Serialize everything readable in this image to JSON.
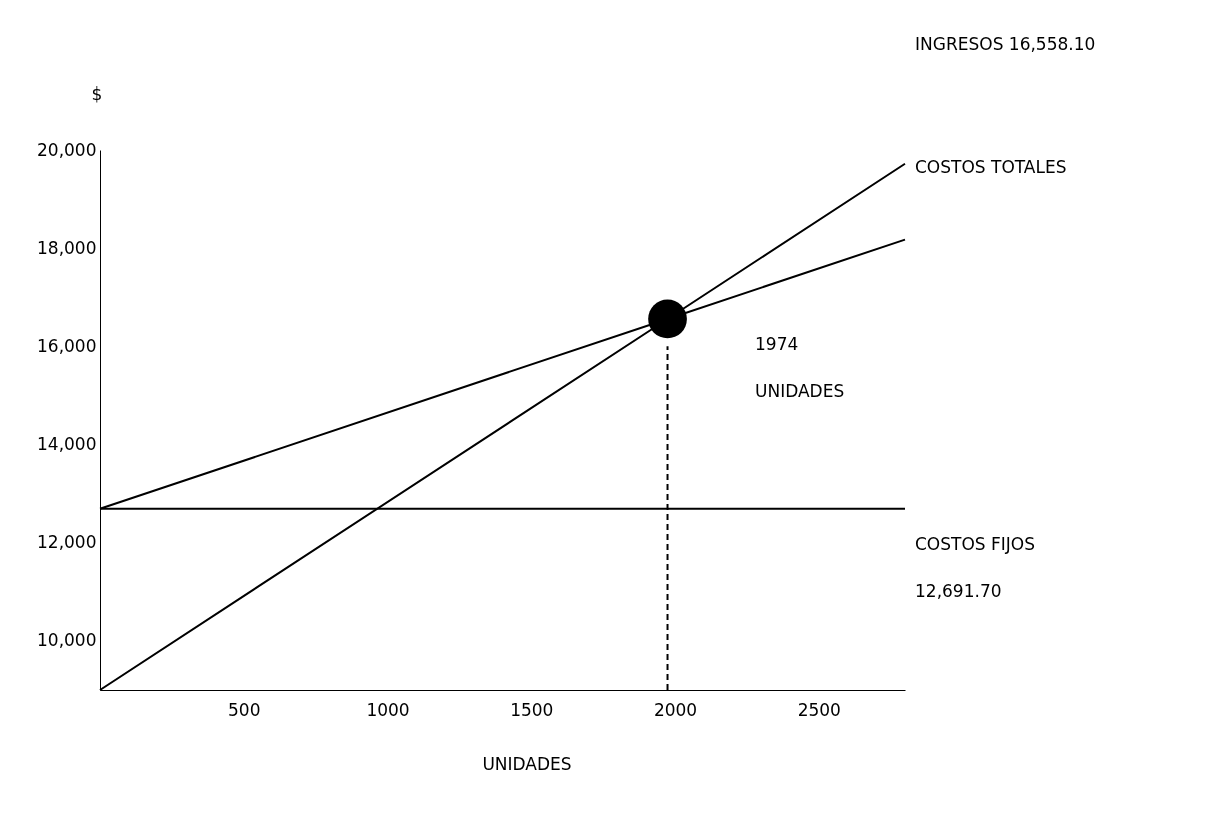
{
  "chart_data": {
    "type": "line",
    "xlabel": "UNIDADES",
    "ylabel": "$",
    "xlim": [
      0,
      2800
    ],
    "ylim": [
      9000,
      20000
    ],
    "xticks": [
      500,
      1000,
      1500,
      2000,
      2500
    ],
    "yticks": [
      {
        "value": 10000,
        "label": "10,000"
      },
      {
        "value": 12000,
        "label": "12,000"
      },
      {
        "value": 14000,
        "label": "14,000"
      },
      {
        "value": 16000,
        "label": "16,000"
      },
      {
        "value": 18000,
        "label": "18,000"
      },
      {
        "value": 20000,
        "label": "20,000"
      }
    ],
    "grid": false,
    "marker": "none",
    "series": [
      {
        "color": "#000000",
        "x": [
          0,
          1974,
          2800
        ],
        "values": [
          9000,
          16558.1,
          19720
        ],
        "line_style": "solid"
      },
      {
        "color": "#000000",
        "x": [
          0,
          1974,
          2800
        ],
        "values": [
          12691.7,
          16558.1,
          18175
        ],
        "line_style": "solid"
      },
      {
        "color": "#000000",
        "x": [
          0,
          2800
        ],
        "values": [
          12691.7,
          12691.7
        ],
        "line_style": "solid"
      },
      {
        "color": "#000000",
        "x": [
          1974,
          1974
        ],
        "values": [
          9000,
          16000
        ],
        "line_style": "dashed"
      },
      {
        "type": "scatter",
        "color": "#000000",
        "x": [
          1974
        ],
        "values": [
          16558.1
        ],
        "marker": "circle"
      }
    ],
    "annotations": [
      "INGRESOS 16,558.10",
      "COSTOS TOTALES",
      "1974",
      "UNIDADES",
      "COSTOS FIJOS",
      "12,691.70"
    ]
  }
}
